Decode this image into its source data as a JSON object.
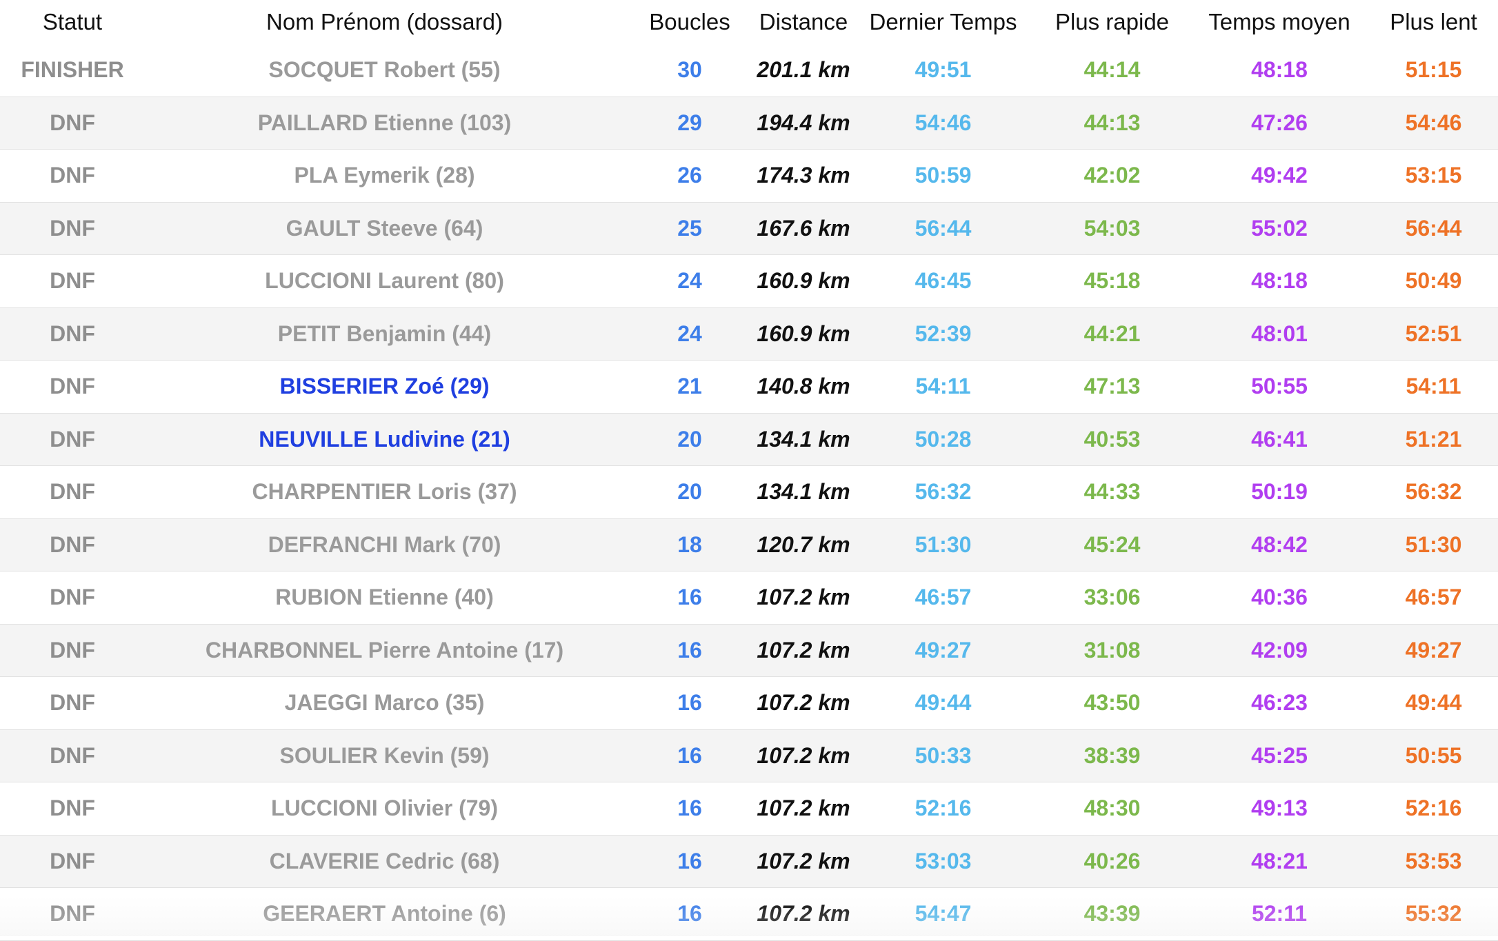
{
  "table": {
    "headers": {
      "status": "Statut",
      "name": "Nom Prénom (dossard)",
      "loops": "Boucles",
      "distance": "Distance",
      "last_time": "Dernier Temps",
      "fastest": "Plus rapide",
      "average": "Temps moyen",
      "slowest": "Plus lent"
    },
    "rows": [
      {
        "status": "FINISHER",
        "name": "SOCQUET Robert (55)",
        "loops": "30",
        "distance": "201.1 km",
        "last_time": "49:51",
        "fastest": "44:14",
        "average": "48:18",
        "slowest": "51:15",
        "highlight": false
      },
      {
        "status": "DNF",
        "name": "PAILLARD Etienne (103)",
        "loops": "29",
        "distance": "194.4 km",
        "last_time": "54:46",
        "fastest": "44:13",
        "average": "47:26",
        "slowest": "54:46",
        "highlight": false
      },
      {
        "status": "DNF",
        "name": "PLA Eymerik (28)",
        "loops": "26",
        "distance": "174.3 km",
        "last_time": "50:59",
        "fastest": "42:02",
        "average": "49:42",
        "slowest": "53:15",
        "highlight": false
      },
      {
        "status": "DNF",
        "name": "GAULT Steeve (64)",
        "loops": "25",
        "distance": "167.6 km",
        "last_time": "56:44",
        "fastest": "54:03",
        "average": "55:02",
        "slowest": "56:44",
        "highlight": false
      },
      {
        "status": "DNF",
        "name": "LUCCIONI Laurent (80)",
        "loops": "24",
        "distance": "160.9 km",
        "last_time": "46:45",
        "fastest": "45:18",
        "average": "48:18",
        "slowest": "50:49",
        "highlight": false
      },
      {
        "status": "DNF",
        "name": "PETIT Benjamin (44)",
        "loops": "24",
        "distance": "160.9 km",
        "last_time": "52:39",
        "fastest": "44:21",
        "average": "48:01",
        "slowest": "52:51",
        "highlight": false
      },
      {
        "status": "DNF",
        "name": "BISSERIER Zoé (29)",
        "loops": "21",
        "distance": "140.8 km",
        "last_time": "54:11",
        "fastest": "47:13",
        "average": "50:55",
        "slowest": "54:11",
        "highlight": true
      },
      {
        "status": "DNF",
        "name": "NEUVILLE Ludivine (21)",
        "loops": "20",
        "distance": "134.1 km",
        "last_time": "50:28",
        "fastest": "40:53",
        "average": "46:41",
        "slowest": "51:21",
        "highlight": true
      },
      {
        "status": "DNF",
        "name": "CHARPENTIER Loris (37)",
        "loops": "20",
        "distance": "134.1 km",
        "last_time": "56:32",
        "fastest": "44:33",
        "average": "50:19",
        "slowest": "56:32",
        "highlight": false
      },
      {
        "status": "DNF",
        "name": "DEFRANCHI Mark (70)",
        "loops": "18",
        "distance": "120.7 km",
        "last_time": "51:30",
        "fastest": "45:24",
        "average": "48:42",
        "slowest": "51:30",
        "highlight": false
      },
      {
        "status": "DNF",
        "name": "RUBION Etienne (40)",
        "loops": "16",
        "distance": "107.2 km",
        "last_time": "46:57",
        "fastest": "33:06",
        "average": "40:36",
        "slowest": "46:57",
        "highlight": false
      },
      {
        "status": "DNF",
        "name": "CHARBONNEL Pierre Antoine (17)",
        "loops": "16",
        "distance": "107.2 km",
        "last_time": "49:27",
        "fastest": "31:08",
        "average": "42:09",
        "slowest": "49:27",
        "highlight": false
      },
      {
        "status": "DNF",
        "name": "JAEGGI Marco (35)",
        "loops": "16",
        "distance": "107.2 km",
        "last_time": "49:44",
        "fastest": "43:50",
        "average": "46:23",
        "slowest": "49:44",
        "highlight": false
      },
      {
        "status": "DNF",
        "name": "SOULIER Kevin (59)",
        "loops": "16",
        "distance": "107.2 km",
        "last_time": "50:33",
        "fastest": "38:39",
        "average": "45:25",
        "slowest": "50:55",
        "highlight": false
      },
      {
        "status": "DNF",
        "name": "LUCCIONI Olivier (79)",
        "loops": "16",
        "distance": "107.2 km",
        "last_time": "52:16",
        "fastest": "48:30",
        "average": "49:13",
        "slowest": "52:16",
        "highlight": false
      },
      {
        "status": "DNF",
        "name": "CLAVERIE Cedric (68)",
        "loops": "16",
        "distance": "107.2 km",
        "last_time": "53:03",
        "fastest": "40:26",
        "average": "48:21",
        "slowest": "53:53",
        "highlight": false
      },
      {
        "status": "DNF",
        "name": "GEERAERT Antoine (6)",
        "loops": "16",
        "distance": "107.2 km",
        "last_time": "54:47",
        "fastest": "43:39",
        "average": "52:11",
        "slowest": "55:32",
        "highlight": false
      }
    ]
  },
  "colors": {
    "status": "#8e8e8e",
    "name": "#9a9a9a",
    "name_highlight": "#1f3fe0",
    "loops": "#3d7ee9",
    "distance": "#111111",
    "last_time": "#55b8ec",
    "fastest": "#7cb84c",
    "average": "#b13ef0",
    "slowest": "#ee7226"
  }
}
